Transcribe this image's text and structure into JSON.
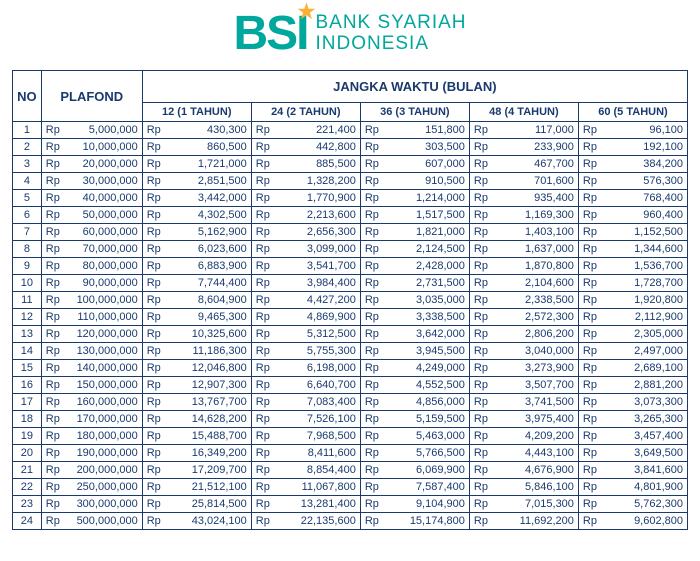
{
  "logo": {
    "abbrev": "BSI",
    "line1": "BANK SYARIAH",
    "line2": "INDONESIA",
    "brand_color": "#00a79d",
    "star_color": "#f9b233"
  },
  "table": {
    "type": "table",
    "text_color": "#1a3a6e",
    "border_color": "#1a3a6e",
    "background_color": "#ffffff",
    "font_size_body": 11,
    "font_size_header": 13,
    "currency_label": "Rp",
    "headers": {
      "no": "NO",
      "plafond": "PLAFOND",
      "period_group": "JANGKA WAKTU (BULAN)",
      "periods": [
        "12 (1 TAHUN)",
        "24 (2 TAHUN)",
        "36 (3 TAHUN)",
        "48 (4 TAHUN)",
        "60 (5 TAHUN)"
      ]
    },
    "rows": [
      {
        "no": 1,
        "plafond": "5,000,000",
        "v": [
          "430,300",
          "221,400",
          "151,800",
          "117,000",
          "96,100"
        ]
      },
      {
        "no": 2,
        "plafond": "10,000,000",
        "v": [
          "860,500",
          "442,800",
          "303,500",
          "233,900",
          "192,100"
        ]
      },
      {
        "no": 3,
        "plafond": "20,000,000",
        "v": [
          "1,721,000",
          "885,500",
          "607,000",
          "467,700",
          "384,200"
        ]
      },
      {
        "no": 4,
        "plafond": "30,000,000",
        "v": [
          "2,851,500",
          "1,328,200",
          "910,500",
          "701,600",
          "576,300"
        ]
      },
      {
        "no": 5,
        "plafond": "40,000,000",
        "v": [
          "3,442,000",
          "1,770,900",
          "1,214,000",
          "935,400",
          "768,400"
        ]
      },
      {
        "no": 6,
        "plafond": "50,000,000",
        "v": [
          "4,302,500",
          "2,213,600",
          "1,517,500",
          "1,169,300",
          "960,400"
        ]
      },
      {
        "no": 7,
        "plafond": "60,000,000",
        "v": [
          "5,162,900",
          "2,656,300",
          "1,821,000",
          "1,403,100",
          "1,152,500"
        ]
      },
      {
        "no": 8,
        "plafond": "70,000,000",
        "v": [
          "6,023,600",
          "3,099,000",
          "2,124,500",
          "1,637,000",
          "1,344,600"
        ]
      },
      {
        "no": 9,
        "plafond": "80,000,000",
        "v": [
          "6,883,900",
          "3,541,700",
          "2,428,000",
          "1,870,800",
          "1,536,700"
        ]
      },
      {
        "no": 10,
        "plafond": "90,000,000",
        "v": [
          "7,744,400",
          "3,984,400",
          "2,731,500",
          "2,104,600",
          "1,728,700"
        ]
      },
      {
        "no": 11,
        "plafond": "100,000,000",
        "v": [
          "8,604,900",
          "4,427,200",
          "3,035,000",
          "2,338,500",
          "1,920,800"
        ]
      },
      {
        "no": 12,
        "plafond": "110,000,000",
        "v": [
          "9,465,300",
          "4,869,900",
          "3,338,500",
          "2,572,300",
          "2,112,900"
        ]
      },
      {
        "no": 13,
        "plafond": "120,000,000",
        "v": [
          "10,325,600",
          "5,312,500",
          "3,642,000",
          "2,806,200",
          "2,305,000"
        ]
      },
      {
        "no": 14,
        "plafond": "130,000,000",
        "v": [
          "11,186,300",
          "5,755,300",
          "3,945,500",
          "3,040,000",
          "2,497,000"
        ]
      },
      {
        "no": 15,
        "plafond": "140,000,000",
        "v": [
          "12,046,800",
          "6,198,000",
          "4,249,000",
          "3,273,900",
          "2,689,100"
        ]
      },
      {
        "no": 16,
        "plafond": "150,000,000",
        "v": [
          "12,907,300",
          "6,640,700",
          "4,552,500",
          "3,507,700",
          "2,881,200"
        ]
      },
      {
        "no": 17,
        "plafond": "160,000,000",
        "v": [
          "13,767,700",
          "7,083,400",
          "4,856,000",
          "3,741,500",
          "3,073,300"
        ]
      },
      {
        "no": 18,
        "plafond": "170,000,000",
        "v": [
          "14,628,200",
          "7,526,100",
          "5,159,500",
          "3,975,400",
          "3,265,300"
        ]
      },
      {
        "no": 19,
        "plafond": "180,000,000",
        "v": [
          "15,488,700",
          "7,968,500",
          "5,463,000",
          "4,209,200",
          "3,457,400"
        ]
      },
      {
        "no": 20,
        "plafond": "190,000,000",
        "v": [
          "16,349,200",
          "8,411,600",
          "5,766,500",
          "4,443,100",
          "3,649,500"
        ]
      },
      {
        "no": 21,
        "plafond": "200,000,000",
        "v": [
          "17,209,700",
          "8,854,400",
          "6,069,900",
          "4,676,900",
          "3,841,600"
        ]
      },
      {
        "no": 22,
        "plafond": "250,000,000",
        "v": [
          "21,512,100",
          "11,067,800",
          "7,587,400",
          "5,846,100",
          "4,801,900"
        ]
      },
      {
        "no": 23,
        "plafond": "300,000,000",
        "v": [
          "25,814,500",
          "13,281,400",
          "9,104,900",
          "7,015,300",
          "5,762,300"
        ]
      },
      {
        "no": 24,
        "plafond": "500,000,000",
        "v": [
          "43,024,100",
          "22,135,600",
          "15,174,800",
          "11,692,200",
          "9,602,800"
        ]
      }
    ]
  }
}
